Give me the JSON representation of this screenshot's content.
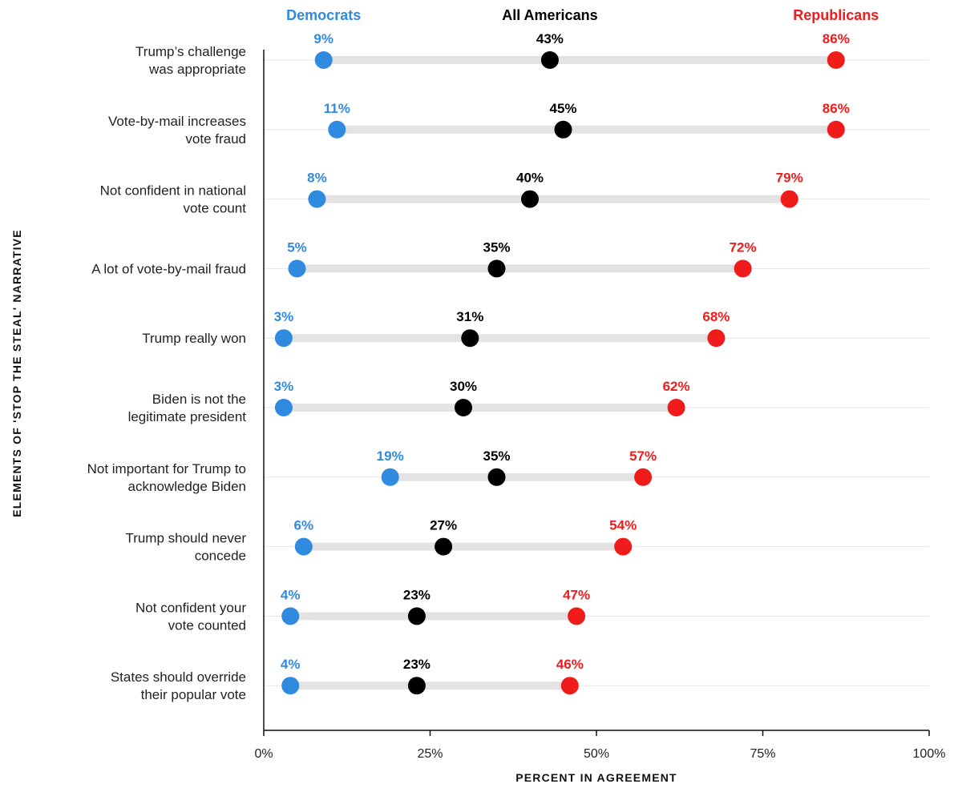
{
  "chart_data": {
    "type": "dot-range",
    "xlabel": "PERCENT IN AGREEMENT",
    "ylabel": "ELEMENTS OF 'STOP THE STEAL' NARRATIVE",
    "xlim": [
      0,
      100
    ],
    "x_ticks": [
      0,
      25,
      50,
      75,
      100
    ],
    "x_tick_labels": [
      "0%",
      "25%",
      "50%",
      "75%",
      "100%"
    ],
    "value_suffix": "%",
    "legend_placement": "top",
    "series": [
      {
        "name": "Democrats",
        "color": "#2f8ae0",
        "values": [
          9,
          11,
          8,
          5,
          3,
          3,
          19,
          6,
          4,
          4
        ]
      },
      {
        "name": "All Americans",
        "color": "#000000",
        "values": [
          43,
          45,
          40,
          35,
          31,
          30,
          35,
          27,
          23,
          23
        ]
      },
      {
        "name": "Republicans",
        "color": "#f01c1c",
        "values": [
          86,
          86,
          79,
          72,
          68,
          62,
          57,
          54,
          47,
          46
        ]
      }
    ],
    "categories": [
      [
        "Trump’s challenge",
        "was appropriate"
      ],
      [
        "Vote-by-mail increases",
        "vote fraud"
      ],
      [
        "Not confident in national",
        "vote count"
      ],
      [
        "A lot of vote-by-mail fraud"
      ],
      [
        "Trump really won"
      ],
      [
        "Biden is not the",
        "legitimate president"
      ],
      [
        "Not important for Trump to",
        "acknowledge Biden"
      ],
      [
        "Trump should never",
        "concede"
      ],
      [
        "Not confident your",
        "vote counted"
      ],
      [
        "States should override",
        "their popular vote"
      ]
    ],
    "colors": {
      "range_bar": "#e3e3e3",
      "gridline": "#e6e6e6",
      "axis": "#111111"
    }
  }
}
